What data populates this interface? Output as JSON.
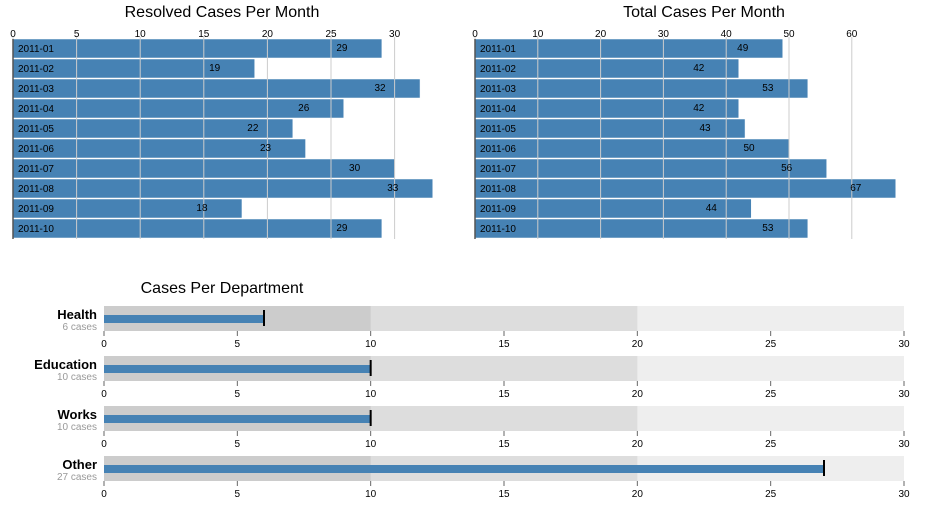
{
  "colors": {
    "bar": "#4682b4",
    "grid": "#cccccc",
    "range_dark": "#cccccc",
    "range_mid": "#dddddd",
    "range_light": "#eeeeee",
    "marker": "#000000",
    "subtitle": "#999999"
  },
  "chart_data": [
    {
      "type": "bar",
      "orientation": "horizontal",
      "title": "Resolved Cases Per Month",
      "categories": [
        "2011-01",
        "2011-02",
        "2011-03",
        "2011-04",
        "2011-05",
        "2011-06",
        "2011-07",
        "2011-08",
        "2011-09",
        "2011-10"
      ],
      "values": [
        29,
        19,
        32,
        26,
        22,
        23,
        30,
        33,
        18,
        29
      ],
      "ticks": [
        0,
        5,
        10,
        15,
        20,
        25,
        30
      ],
      "xlim": [
        0,
        33
      ],
      "grid": true,
      "axis_position": "top"
    },
    {
      "type": "bar",
      "orientation": "horizontal",
      "title": "Total Cases Per Month",
      "categories": [
        "2011-01",
        "2011-02",
        "2011-03",
        "2011-04",
        "2011-05",
        "2011-06",
        "2011-07",
        "2011-08",
        "2011-09",
        "2011-10"
      ],
      "values": [
        49,
        42,
        53,
        42,
        43,
        50,
        56,
        67,
        44,
        53
      ],
      "ticks": [
        0,
        10,
        20,
        30,
        40,
        50,
        60
      ],
      "xlim": [
        0,
        67
      ],
      "grid": true,
      "axis_position": "top"
    },
    {
      "type": "bullet",
      "title": "Cases Per Department",
      "ranges": [
        10,
        20,
        30
      ],
      "ticks": [
        0,
        5,
        10,
        15,
        20,
        25,
        30
      ],
      "xlim": [
        0,
        30
      ],
      "items": [
        {
          "label": "Health",
          "subtitle": "6 cases",
          "measure": 6,
          "marker": 6
        },
        {
          "label": "Education",
          "subtitle": "10 cases",
          "measure": 10,
          "marker": 10
        },
        {
          "label": "Works",
          "subtitle": "10 cases",
          "measure": 10,
          "marker": 10
        },
        {
          "label": "Other",
          "subtitle": "27 cases",
          "measure": 27,
          "marker": 27
        }
      ]
    }
  ]
}
